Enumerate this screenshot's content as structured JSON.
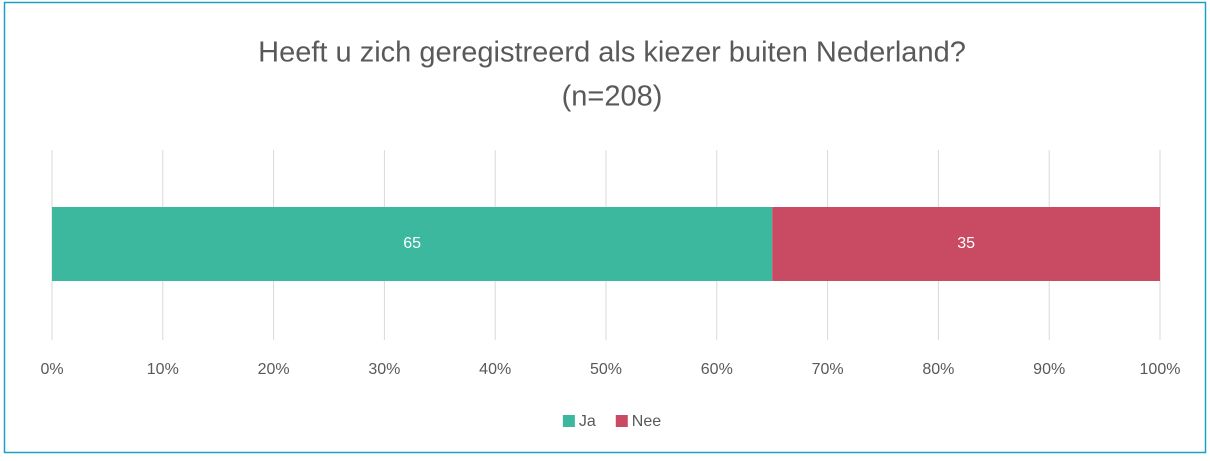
{
  "chart_data": {
    "type": "stacked-bar-horizontal",
    "title": [
      "Heeft u zich geregistreerd als kiezer buiten Nederland?",
      "(n=208)"
    ],
    "categories": [
      null
    ],
    "series": [
      {
        "name": "Ja",
        "color": "#3bb89e",
        "values": [
          65
        ]
      },
      {
        "name": "Nee",
        "color": "#c84a63",
        "values": [
          35
        ]
      }
    ],
    "xlim": [
      0,
      100
    ],
    "xticks": [
      {
        "value": 0,
        "label": "0%"
      },
      {
        "value": 10,
        "label": "10%"
      },
      {
        "value": 20,
        "label": "20%"
      },
      {
        "value": 30,
        "label": "30%"
      },
      {
        "value": 40,
        "label": "40%"
      },
      {
        "value": 50,
        "label": "50%"
      },
      {
        "value": 60,
        "label": "60%"
      },
      {
        "value": 70,
        "label": "70%"
      },
      {
        "value": 80,
        "label": "80%"
      },
      {
        "value": 90,
        "label": "90%"
      },
      {
        "value": 100,
        "label": "100%"
      }
    ],
    "grid": true,
    "legend": "bottom"
  }
}
